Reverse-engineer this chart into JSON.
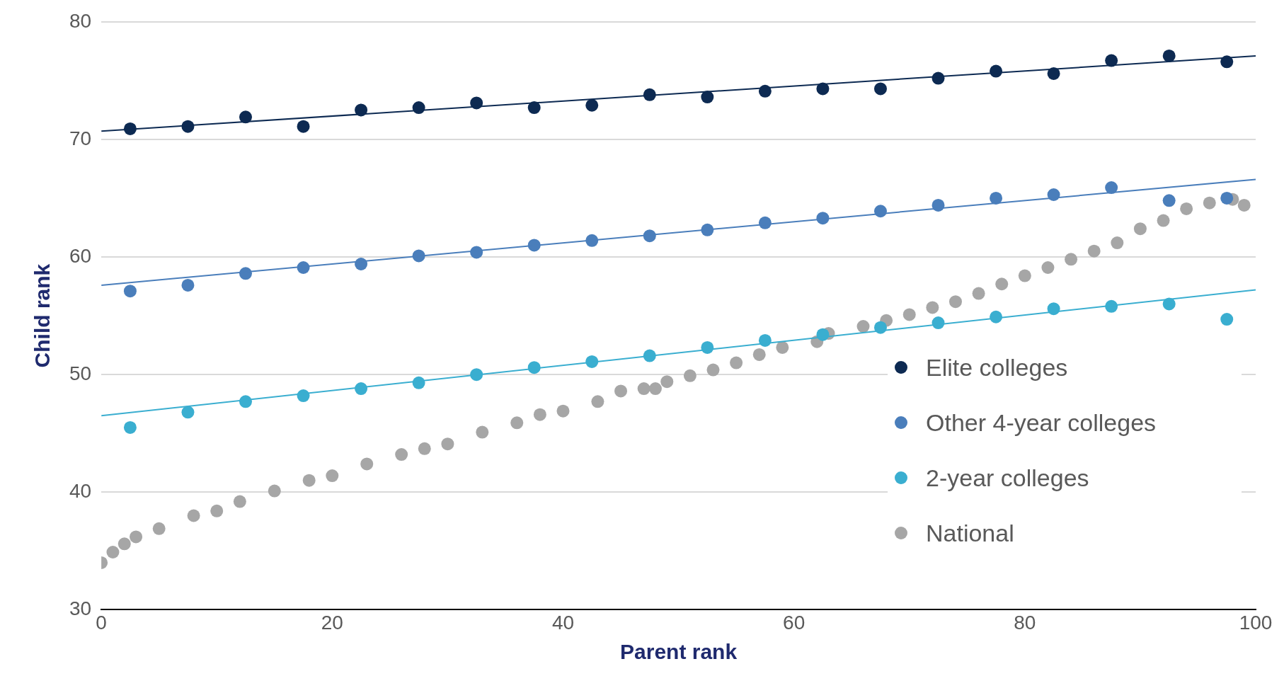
{
  "chart_data": {
    "type": "scatter",
    "xlabel": "Parent rank",
    "ylabel": "Child rank",
    "xlim": [
      0,
      100
    ],
    "xticks": [
      0,
      20,
      40,
      60,
      80,
      100
    ],
    "ylim": [
      30,
      80
    ],
    "yticks": [
      30,
      40,
      50,
      60,
      70,
      80
    ],
    "grid": "y",
    "legend": "right",
    "marker": "circle",
    "series": [
      {
        "name": "Elite colleges",
        "color": "#0d2a52",
        "x": [
          2.5,
          7.5,
          12.5,
          17.5,
          22.5,
          27.5,
          32.5,
          37.5,
          42.5,
          47.5,
          52.5,
          57.5,
          62.5,
          67.5,
          72.5,
          77.5,
          82.5,
          87.5,
          92.5,
          97.5
        ],
        "values": [
          70.9,
          71.1,
          71.9,
          71.1,
          72.5,
          72.7,
          73.1,
          72.7,
          72.9,
          73.8,
          73.6,
          74.1,
          74.3,
          74.3,
          75.2,
          75.8,
          75.6,
          76.7,
          77.1,
          76.6
        ]
      },
      {
        "name": "Other 4-year colleges",
        "color": "#4a7ebb",
        "x": [
          2.5,
          7.5,
          12.5,
          17.5,
          22.5,
          27.5,
          32.5,
          37.5,
          42.5,
          47.5,
          52.5,
          57.5,
          62.5,
          67.5,
          72.5,
          77.5,
          82.5,
          87.5,
          92.5,
          97.5
        ],
        "values": [
          57.1,
          57.6,
          58.6,
          59.1,
          59.4,
          60.1,
          60.4,
          61.0,
          61.4,
          61.8,
          62.3,
          62.9,
          63.3,
          63.9,
          64.4,
          65.0,
          65.3,
          65.9,
          64.8,
          65.0
        ]
      },
      {
        "name": "2-year colleges",
        "color": "#3aaed0",
        "x": [
          2.5,
          7.5,
          12.5,
          17.5,
          22.5,
          27.5,
          32.5,
          37.5,
          42.5,
          47.5,
          52.5,
          57.5,
          62.5,
          67.5,
          72.5,
          77.5,
          82.5,
          87.5,
          92.5,
          97.5
        ],
        "values": [
          45.5,
          46.8,
          47.7,
          48.2,
          48.8,
          49.3,
          50.0,
          50.6,
          51.1,
          51.6,
          52.3,
          52.9,
          53.4,
          54.0,
          54.4,
          54.9,
          55.6,
          55.8,
          56.0,
          54.7
        ]
      },
      {
        "name": "National",
        "color": "#a6a6a6",
        "x": [
          0,
          1,
          2,
          3,
          5,
          8,
          10,
          12,
          15,
          18,
          20,
          23,
          26,
          28,
          30,
          33,
          36,
          38,
          40,
          43,
          45,
          47,
          48,
          49,
          51,
          53,
          55,
          57,
          59,
          62,
          63,
          66,
          68,
          70,
          72,
          74,
          76,
          78,
          80,
          82,
          84,
          86,
          88,
          90,
          92,
          94,
          96,
          98,
          99
        ],
        "values": [
          34.0,
          34.9,
          35.6,
          36.2,
          36.9,
          38.0,
          38.4,
          39.2,
          40.1,
          41.0,
          41.4,
          42.4,
          43.2,
          43.7,
          44.1,
          45.1,
          45.9,
          46.6,
          46.9,
          47.7,
          48.6,
          48.8,
          48.8,
          49.4,
          49.9,
          50.4,
          51.0,
          51.7,
          52.3,
          52.8,
          53.5,
          54.1,
          54.6,
          55.1,
          55.7,
          56.2,
          56.9,
          57.7,
          58.4,
          59.1,
          59.8,
          60.5,
          61.2,
          62.4,
          63.1,
          64.1,
          64.6,
          64.9,
          64.4
        ]
      },
      {
        "type": "line",
        "marker": "none",
        "color": "#0d2a52",
        "x": [
          0,
          100
        ],
        "values": [
          70.7,
          77.1
        ]
      },
      {
        "type": "line",
        "marker": "none",
        "color": "#4a7ebb",
        "x": [
          0,
          100
        ],
        "values": [
          57.6,
          66.6
        ]
      },
      {
        "type": "line",
        "marker": "none",
        "color": "#3aaed0",
        "x": [
          0,
          100
        ],
        "values": [
          46.5,
          57.2
        ]
      }
    ]
  }
}
